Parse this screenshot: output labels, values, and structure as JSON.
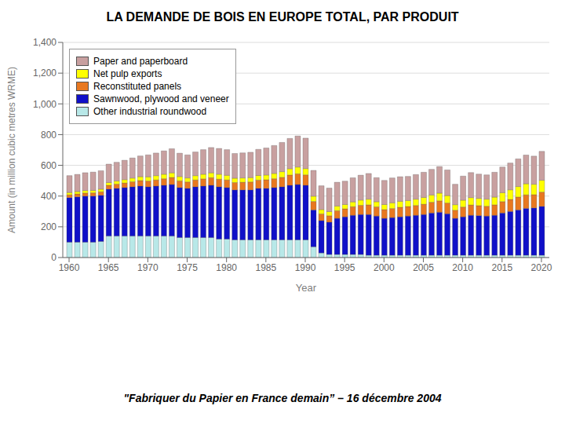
{
  "chart_data": {
    "type": "bar",
    "title": "LA DEMANDE DE BOIS EN EUROPE TOTAL, PAR PRODUIT",
    "xlabel": "Year",
    "ylabel": "Amount (in million cubic metres WRME)",
    "annotations": [
      "\"Fabriquer du Papier en France demain” – 16 décembre 2004"
    ],
    "stacked": true,
    "grid": true,
    "legend": "upper left",
    "x": [
      1960,
      1961,
      1962,
      1963,
      1964,
      1965,
      1966,
      1967,
      1968,
      1969,
      1970,
      1971,
      1972,
      1973,
      1974,
      1975,
      1976,
      1977,
      1978,
      1979,
      1980,
      1981,
      1982,
      1983,
      1984,
      1985,
      1986,
      1987,
      1988,
      1989,
      1990,
      1991,
      1992,
      1993,
      1994,
      1995,
      1996,
      1997,
      1998,
      1999,
      2000,
      2001,
      2002,
      2003,
      2004,
      2005,
      2006,
      2007,
      2008,
      2009,
      2010,
      2011,
      2012,
      2013,
      2014,
      2015,
      2016,
      2017,
      2018,
      2019,
      2020
    ],
    "series": [
      {
        "name": "Other industrial roundwood",
        "color": "#b8e8e8",
        "values": [
          100,
          100,
          100,
          100,
          105,
          140,
          140,
          140,
          140,
          140,
          140,
          140,
          140,
          140,
          130,
          130,
          130,
          130,
          130,
          120,
          120,
          115,
          115,
          115,
          115,
          115,
          115,
          115,
          115,
          115,
          115,
          70,
          30,
          20,
          20,
          20,
          20,
          20,
          15,
          15,
          15,
          15,
          15,
          15,
          15,
          15,
          15,
          15,
          15,
          15,
          15,
          15,
          15,
          15,
          15,
          15,
          15,
          15,
          15,
          15,
          15
        ]
      },
      {
        "name": "Sawnwood, plywood and veneer",
        "color": "#1010c8",
        "values": [
          290,
          295,
          300,
          300,
          300,
          305,
          310,
          315,
          320,
          325,
          320,
          325,
          330,
          335,
          325,
          320,
          330,
          335,
          340,
          340,
          335,
          325,
          325,
          325,
          335,
          335,
          340,
          345,
          355,
          360,
          355,
          240,
          210,
          210,
          235,
          245,
          255,
          260,
          265,
          255,
          240,
          245,
          250,
          255,
          260,
          265,
          275,
          280,
          270,
          240,
          250,
          260,
          258,
          255,
          260,
          275,
          285,
          295,
          305,
          308,
          318
        ]
      },
      {
        "name": "Reconstituted panels",
        "color": "#e87820",
        "values": [
          18,
          19,
          20,
          21,
          23,
          25,
          28,
          30,
          33,
          36,
          38,
          40,
          43,
          46,
          44,
          42,
          45,
          47,
          50,
          50,
          50,
          48,
          50,
          52,
          54,
          56,
          58,
          62,
          67,
          70,
          68,
          55,
          44,
          42,
          50,
          52,
          56,
          60,
          63,
          60,
          57,
          59,
          62,
          62,
          64,
          67,
          70,
          74,
          70,
          53,
          64,
          67,
          65,
          64,
          68,
          74,
          78,
          84,
          88,
          86,
          93
        ]
      },
      {
        "name": "Net pulp exports",
        "color": "#ffff00",
        "values": [
          15,
          15,
          16,
          16,
          17,
          18,
          20,
          22,
          24,
          25,
          27,
          28,
          29,
          30,
          28,
          26,
          28,
          30,
          31,
          32,
          30,
          28,
          28,
          28,
          30,
          31,
          34,
          37,
          41,
          44,
          41,
          34,
          28,
          27,
          30,
          28,
          31,
          34,
          37,
          33,
          33,
          37,
          39,
          39,
          41,
          44,
          47,
          50,
          48,
          36,
          44,
          48,
          47,
          46,
          50,
          58,
          63,
          68,
          72,
          68,
          77
        ]
      },
      {
        "name": "Paper and paperboard",
        "color": "#c8a0a0",
        "values": [
          110,
          112,
          116,
          119,
          120,
          120,
          122,
          126,
          131,
          135,
          143,
          147,
          152,
          157,
          152,
          150,
          154,
          160,
          165,
          168,
          167,
          161,
          163,
          165,
          170,
          176,
          182,
          190,
          197,
          202,
          198,
          168,
          155,
          153,
          155,
          152,
          157,
          162,
          167,
          157,
          157,
          162,
          160,
          157,
          160,
          164,
          167,
          173,
          167,
          133,
          157,
          163,
          158,
          158,
          162,
          167,
          174,
          180,
          187,
          183,
          188
        ]
      }
    ],
    "xlim": [
      1959.2,
      2021
    ],
    "xticks": [
      1960,
      1965,
      1970,
      1975,
      1980,
      1985,
      1990,
      1995,
      2000,
      2005,
      2010,
      2015,
      2020
    ],
    "ylim": [
      0,
      1400
    ],
    "yticks": [
      0,
      200,
      400,
      600,
      800,
      {
        "value": 1000,
        "label": "1,000"
      },
      {
        "value": 1200,
        "label": "1,200"
      },
      {
        "value": 1400,
        "label": "1,400"
      }
    ]
  }
}
